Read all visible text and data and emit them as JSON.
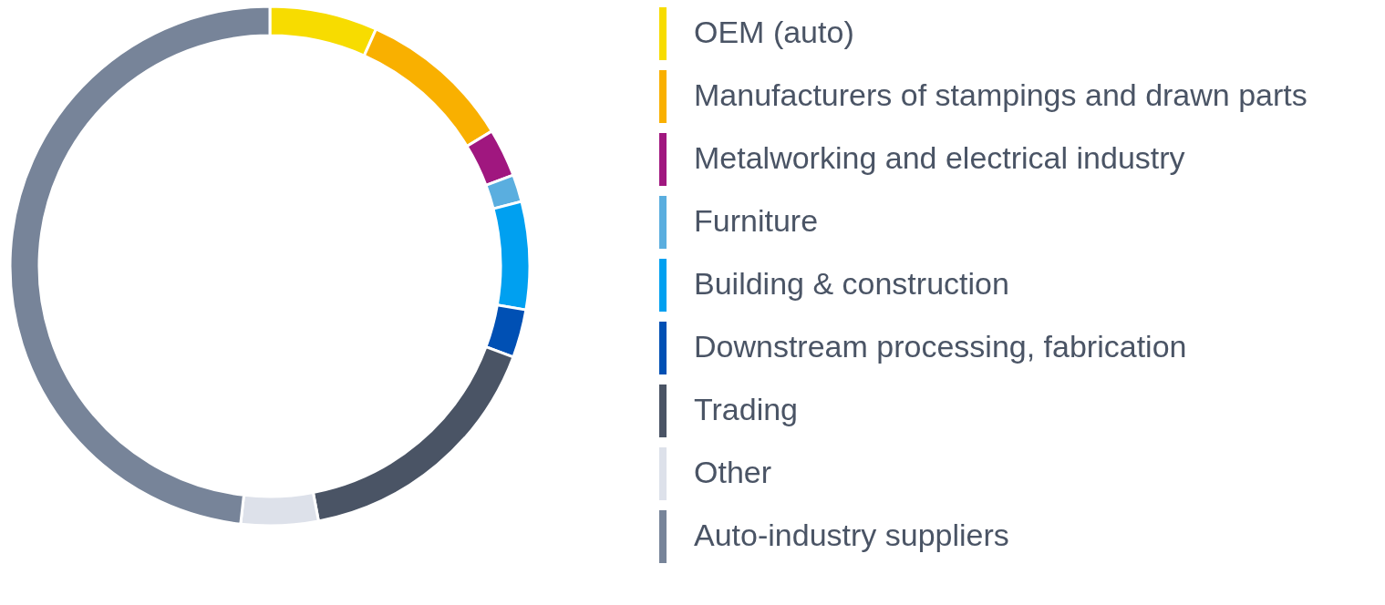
{
  "chart_data": {
    "type": "donut",
    "categories": [
      "OEM (auto)",
      "Manufacturers of stampings and drawn parts",
      "Metalworking and electrical industry",
      "Furniture",
      "Building & construction",
      "Downstream processing, fabrication",
      "Trading",
      "Other",
      "Auto-industry suppliers"
    ],
    "values": [
      6.7,
      9.6,
      3.0,
      1.7,
      6.7,
      3.0,
      16.3,
      4.8,
      48.2
    ],
    "colors": [
      "#f7dc00",
      "#f9b000",
      "#a0177f",
      "#5aaedf",
      "#00a0f0",
      "#0050b4",
      "#4a5465",
      "#dde1ea",
      "#778499"
    ],
    "legend": "right"
  }
}
